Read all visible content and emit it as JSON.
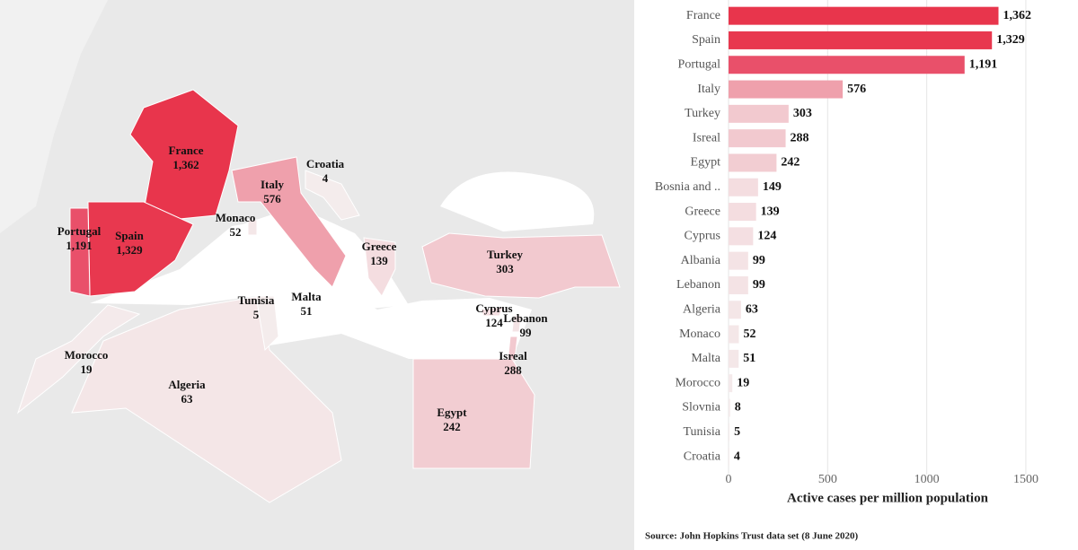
{
  "chart_data": {
    "type": "bar",
    "orientation": "horizontal",
    "categories": [
      "France",
      "Spain",
      "Portugal",
      "Italy",
      "Turkey",
      "Isreal",
      "Egypt",
      "Bosnia and ..",
      "Greece",
      "Cyprus",
      "Albania",
      "Lebanon",
      "Algeria",
      "Monaco",
      "Malta",
      "Morocco",
      "Slovnia",
      "Tunisia",
      "Croatia"
    ],
    "values": [
      1362,
      1329,
      1191,
      576,
      303,
      288,
      242,
      149,
      139,
      124,
      99,
      99,
      63,
      52,
      51,
      19,
      8,
      5,
      4
    ],
    "value_labels": [
      "1,362",
      "1,329",
      "1,191",
      "576",
      "303",
      "288",
      "242",
      "149",
      "139",
      "124",
      "99",
      "99",
      "63",
      "52",
      "51",
      "19",
      "8",
      "5",
      "4"
    ],
    "colors": [
      "#e8354c",
      "#e8384f",
      "#e9506a",
      "#efa0ac",
      "#f2c9cf",
      "#f2c9cf",
      "#f2cdd2",
      "#f4dde0",
      "#f4dde0",
      "#f4dfe2",
      "#f4e3e5",
      "#f4e3e5",
      "#f4e6e7",
      "#f4e7e8",
      "#f4e7e8",
      "#f4eaeb",
      "#f4ebec",
      "#f4ecec",
      "#f4ecec"
    ],
    "xlim": [
      0,
      1600
    ],
    "xticks": [
      0,
      500,
      1000,
      1500
    ],
    "grid": true,
    "x_label": "Active cases per million population",
    "source": "Source: John Hopkins Trust data set (8 June 2020)"
  }
}
